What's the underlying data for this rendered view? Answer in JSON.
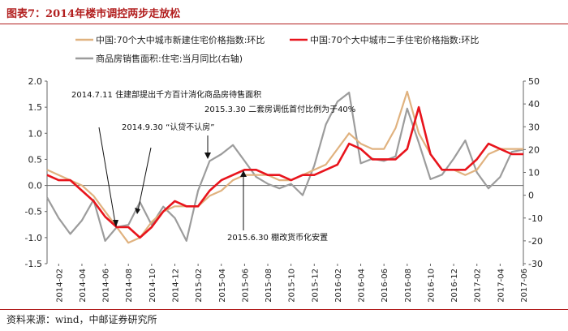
{
  "title": "图表7：2014年楼市调控两步走放松",
  "source": "资料来源：wind，中邮证券研究所",
  "colors": {
    "new_home": "#e0b27f",
    "second_hand": "#e8141c",
    "sales_area": "#9c9c9c",
    "accent": "#b21f1f"
  },
  "chart_data": {
    "type": "line",
    "legend_position": "top",
    "grid": false,
    "x": [
      "2014-01",
      "2014-02",
      "2014-03",
      "2014-04",
      "2014-05",
      "2014-06",
      "2014-07",
      "2014-08",
      "2014-09",
      "2014-10",
      "2014-11",
      "2014-12",
      "2015-01",
      "2015-02",
      "2015-03",
      "2015-04",
      "2015-05",
      "2015-06",
      "2015-07",
      "2015-08",
      "2015-09",
      "2015-10",
      "2015-11",
      "2015-12",
      "2016-01",
      "2016-02",
      "2016-03",
      "2016-04",
      "2016-05",
      "2016-06",
      "2016-07",
      "2016-08",
      "2016-09",
      "2016-10",
      "2016-11",
      "2016-12",
      "2017-01",
      "2017-02",
      "2017-03",
      "2017-04",
      "2017-05",
      "2017-06"
    ],
    "x_tick_labels": [
      "2014-02",
      "2014-04",
      "2014-06",
      "2014-08",
      "2014-10",
      "2014-12",
      "2015-02",
      "2015-04",
      "2015-06",
      "2015-08",
      "2015-10",
      "2015-12",
      "2016-02",
      "2016-04",
      "2016-06",
      "2016-08",
      "2016-10",
      "2016-12",
      "2017-02",
      "2017-04",
      "2017-06"
    ],
    "ylim_left": [
      -1.5,
      2.0
    ],
    "yticks_left": [
      "2.0",
      "1.5",
      "1.0",
      "0.5",
      "0.0",
      "-0.5",
      "-1.0",
      "-1.5"
    ],
    "ylim_right": [
      -30,
      50
    ],
    "yticks_right": [
      "50",
      "40",
      "30",
      "20",
      "10",
      "0",
      "-10",
      "-20",
      "-30"
    ],
    "series": [
      {
        "name": "中国:70个大中城市新建住宅价格指数:环比",
        "axis": "left",
        "values": [
          0.3,
          0.2,
          0.1,
          0.0,
          -0.2,
          -0.5,
          -0.8,
          -1.1,
          -1.0,
          -0.7,
          -0.5,
          -0.4,
          -0.4,
          -0.4,
          -0.2,
          -0.1,
          0.1,
          0.2,
          0.2,
          0.2,
          0.1,
          0.1,
          0.2,
          0.3,
          0.4,
          0.7,
          1.0,
          0.8,
          0.7,
          0.7,
          1.1,
          1.8,
          1.0,
          0.6,
          0.3,
          0.3,
          0.2,
          0.3,
          0.6,
          0.7,
          0.7,
          0.7
        ]
      },
      {
        "name": "中国:70个大中城市二手住宅价格指数:环比",
        "axis": "left",
        "values": [
          0.2,
          0.1,
          0.1,
          -0.1,
          -0.3,
          -0.6,
          -0.8,
          -0.8,
          -1.0,
          -0.8,
          -0.5,
          -0.3,
          -0.4,
          -0.4,
          -0.1,
          0.1,
          0.2,
          0.3,
          0.3,
          0.2,
          0.2,
          0.1,
          0.2,
          0.2,
          0.3,
          0.4,
          0.8,
          0.7,
          0.5,
          0.5,
          0.5,
          0.7,
          1.5,
          0.6,
          0.3,
          0.3,
          0.3,
          0.5,
          0.8,
          0.7,
          0.6,
          0.6
        ]
      },
      {
        "name": "商品房销售面积:住宅:当月同比(右轴)",
        "axis": "right",
        "values": [
          -1,
          -10,
          -17,
          -11,
          -2,
          -20,
          -14,
          -13,
          -3,
          -13,
          -5,
          -10,
          -20,
          2,
          15,
          18,
          22,
          15,
          8,
          5,
          3,
          5,
          0,
          13,
          31,
          41,
          45,
          14,
          16,
          15,
          17,
          38,
          23,
          7,
          9,
          16,
          24,
          10,
          3,
          8,
          19,
          20
        ]
      }
    ],
    "annotations": [
      "2014.7.11 住建部提出千方百计消化商品房待售面积",
      "2014.9.30 “认贷不认房”",
      "2015.3.30 二套房调低首付比例为于40%",
      "2015.6.30 棚改货币化安置"
    ]
  }
}
